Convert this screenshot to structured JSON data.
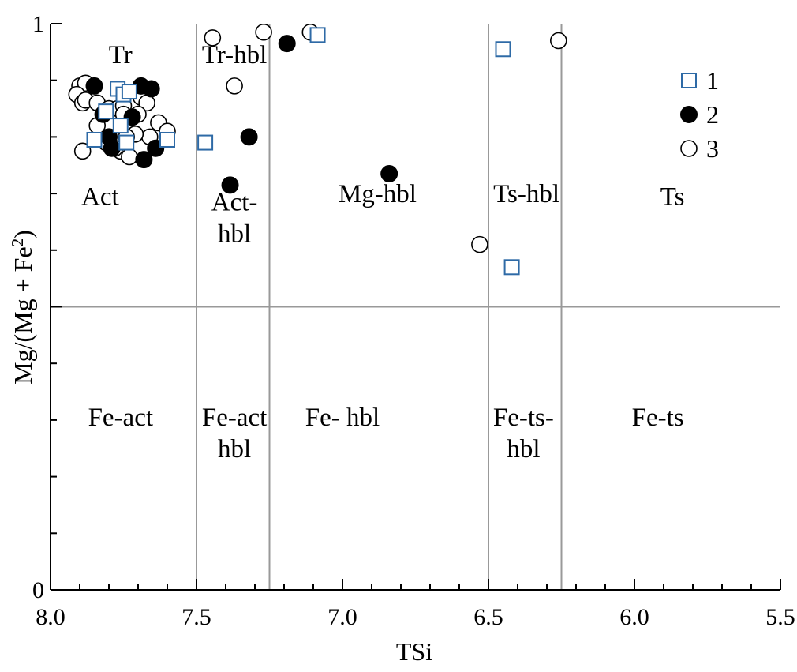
{
  "chart_data": {
    "type": "scatter",
    "title": "",
    "xlabel": "TSi",
    "ylabel": "Mg/(Mg + Fe2)",
    "ylabel_main": "Mg/(Mg + Fe",
    "ylabel_sup": "2",
    "ylabel_close": ")",
    "x_reversed": true,
    "xlim": [
      8.0,
      5.5
    ],
    "ylim": [
      0,
      1
    ],
    "x_ticks": [
      "8.0",
      "7.5",
      "7.0",
      "6.5",
      "6.0",
      "5.5"
    ],
    "x_tick_values": [
      8.0,
      7.5,
      7.0,
      6.5,
      6.0,
      5.5
    ],
    "y_ticks": [
      "0",
      "1"
    ],
    "y_tick_values": [
      0,
      1
    ],
    "field_boundaries": {
      "x": [
        7.5,
        7.25,
        6.5,
        6.25
      ],
      "y": [
        0.5
      ]
    },
    "field_labels": [
      {
        "lines": [
          "Tr"
        ],
        "x": 7.76,
        "y": 0.93
      },
      {
        "lines": [
          "Tr-hbl"
        ],
        "x": 7.37,
        "y": 0.93
      },
      {
        "lines": [
          "Act"
        ],
        "x": 7.83,
        "y": 0.68
      },
      {
        "lines": [
          "Act-",
          "hbl"
        ],
        "x": 7.37,
        "y": 0.67
      },
      {
        "lines": [
          "Mg-hbl"
        ],
        "x": 6.88,
        "y": 0.685
      },
      {
        "lines": [
          "Ts-hbl"
        ],
        "x": 6.37,
        "y": 0.685
      },
      {
        "lines": [
          "Ts"
        ],
        "x": 5.87,
        "y": 0.68
      },
      {
        "lines": [
          "Fe-act"
        ],
        "x": 7.76,
        "y": 0.29
      },
      {
        "lines": [
          "Fe-act",
          "hbl"
        ],
        "x": 7.37,
        "y": 0.29
      },
      {
        "lines": [
          "Fe- hbl"
        ],
        "x": 7.0,
        "y": 0.29
      },
      {
        "lines": [
          "Fe-ts-",
          "hbl"
        ],
        "x": 6.38,
        "y": 0.29
      },
      {
        "lines": [
          "Fe-ts"
        ],
        "x": 5.92,
        "y": 0.29
      }
    ],
    "legend": {
      "placement": "top-right",
      "entries": [
        "1",
        "2",
        "3"
      ]
    },
    "series": [
      {
        "name": "1",
        "marker": "open-square",
        "color": "#2e6aa6",
        "points": [
          [
            7.085,
            0.98
          ],
          [
            6.45,
            0.955
          ],
          [
            6.42,
            0.57
          ],
          [
            7.77,
            0.885
          ],
          [
            7.75,
            0.875
          ],
          [
            7.73,
            0.88
          ],
          [
            7.81,
            0.845
          ],
          [
            7.76,
            0.82
          ],
          [
            7.74,
            0.79
          ],
          [
            7.85,
            0.795
          ],
          [
            7.6,
            0.795
          ],
          [
            7.47,
            0.79
          ]
        ]
      },
      {
        "name": "2",
        "marker": "filled-circle",
        "color": "#000000",
        "points": [
          [
            7.19,
            0.965
          ],
          [
            7.32,
            0.8
          ],
          [
            7.385,
            0.715
          ],
          [
            6.84,
            0.735
          ],
          [
            7.85,
            0.89
          ],
          [
            7.69,
            0.89
          ],
          [
            7.655,
            0.885
          ],
          [
            7.82,
            0.84
          ],
          [
            7.72,
            0.835
          ],
          [
            7.8,
            0.8
          ],
          [
            7.79,
            0.78
          ],
          [
            7.64,
            0.78
          ],
          [
            7.68,
            0.76
          ]
        ]
      },
      {
        "name": "3",
        "marker": "open-circle",
        "color": "#000000",
        "points": [
          [
            7.445,
            0.975
          ],
          [
            7.27,
            0.985
          ],
          [
            7.11,
            0.985
          ],
          [
            6.26,
            0.97
          ],
          [
            7.37,
            0.89
          ],
          [
            6.53,
            0.61
          ],
          [
            7.9,
            0.89
          ],
          [
            7.88,
            0.895
          ],
          [
            7.91,
            0.875
          ],
          [
            7.89,
            0.86
          ],
          [
            7.88,
            0.865
          ],
          [
            7.84,
            0.86
          ],
          [
            7.8,
            0.85
          ],
          [
            7.77,
            0.85
          ],
          [
            7.75,
            0.855
          ],
          [
            7.69,
            0.87
          ],
          [
            7.67,
            0.86
          ],
          [
            7.7,
            0.84
          ],
          [
            7.63,
            0.825
          ],
          [
            7.6,
            0.81
          ],
          [
            7.66,
            0.8
          ],
          [
            7.71,
            0.805
          ],
          [
            7.89,
            0.775
          ],
          [
            7.74,
            0.8
          ],
          [
            7.81,
            0.79
          ],
          [
            7.76,
            0.775
          ],
          [
            7.73,
            0.765
          ],
          [
            7.78,
            0.78
          ],
          [
            7.84,
            0.82
          ],
          [
            7.75,
            0.84
          ]
        ]
      }
    ]
  }
}
